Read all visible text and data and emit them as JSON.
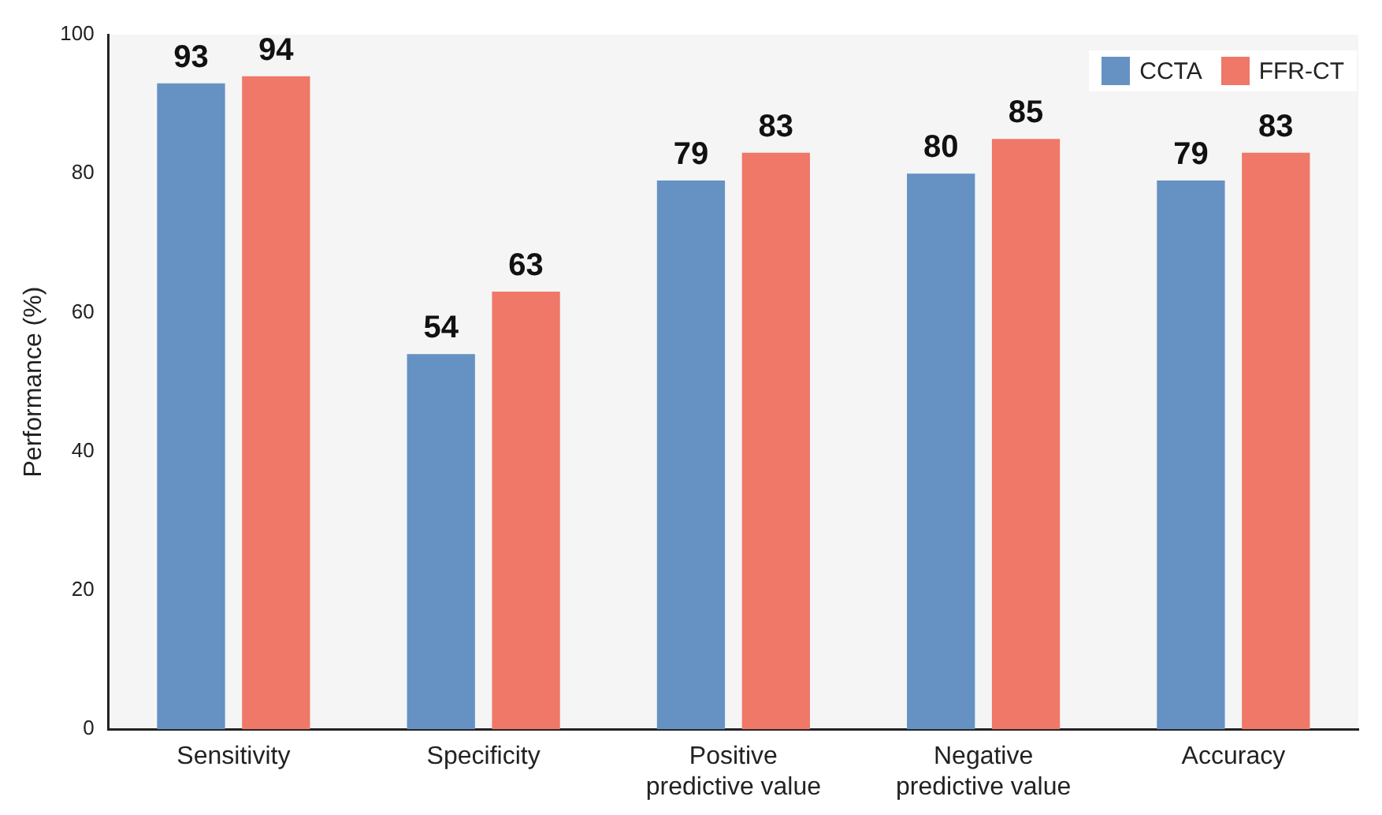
{
  "chart_data": {
    "type": "bar",
    "ylabel": "Performance (%)",
    "categories": [
      "Sensitivity",
      "Specificity",
      "Positive predictive value",
      "Negative predictive value",
      "Accuracy"
    ],
    "series": [
      {
        "name": "CCTA",
        "color": "#6592c3",
        "values": [
          93,
          54,
          79,
          80,
          79
        ]
      },
      {
        "name": "FFR-CT",
        "color": "#ef7869",
        "values": [
          94,
          63,
          83,
          85,
          83
        ]
      }
    ],
    "ylim": [
      0,
      100
    ],
    "yticks": [
      0,
      20,
      40,
      60,
      80,
      100
    ],
    "grid": false,
    "legend": "top right",
    "data_labels": true
  }
}
